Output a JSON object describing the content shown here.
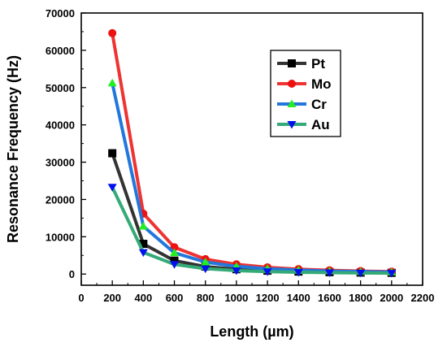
{
  "chart_data": {
    "type": "line",
    "title": "",
    "xlabel": "Length (µm)",
    "ylabel": "Resonance Frequency (Hz)",
    "xlim": [
      0,
      2200
    ],
    "ylim": [
      -3000,
      70000
    ],
    "xticks": [
      0,
      200,
      400,
      600,
      800,
      1000,
      1200,
      1400,
      1600,
      1800,
      2000,
      2200
    ],
    "yticks": [
      0,
      10000,
      20000,
      30000,
      40000,
      50000,
      60000,
      70000
    ],
    "xtick_labels": [
      "0",
      "200",
      "400",
      "600",
      "800",
      "1000",
      "1200",
      "1400",
      "1600",
      "1800",
      "2000",
      "2200"
    ],
    "ytick_labels": [
      "0",
      "10000",
      "20000",
      "30000",
      "40000",
      "50000",
      "60000",
      "70000"
    ],
    "grid": false,
    "legend_position": "top-right",
    "x": [
      200,
      400,
      600,
      800,
      1000,
      1200,
      1400,
      1600,
      1800,
      2000
    ],
    "series": [
      {
        "name": "Pt",
        "color": "#333333",
        "marker": "square",
        "values": [
          32400,
          8100,
          3600,
          2000,
          1300,
          900,
          660,
          510,
          400,
          330
        ]
      },
      {
        "name": "Mo",
        "color": "#ee3333",
        "marker": "circle",
        "values": [
          64600,
          16200,
          7200,
          4000,
          2600,
          1800,
          1320,
          1010,
          800,
          650
        ]
      },
      {
        "name": "Cr",
        "color": "#2277dd",
        "marker": "triangle-up",
        "values": [
          51200,
          12800,
          5700,
          3200,
          2050,
          1420,
          1050,
          800,
          630,
          510
        ]
      },
      {
        "name": "Au",
        "color": "#33aa77",
        "marker": "triangle-down",
        "values": [
          23300,
          5800,
          2600,
          1450,
          930,
          650,
          480,
          370,
          290,
          240
        ]
      }
    ],
    "marker_colors": {
      "Pt": "#000000",
      "Mo": "#ee1111",
      "Cr": "#22ee22",
      "Au": "#0011ee"
    }
  }
}
